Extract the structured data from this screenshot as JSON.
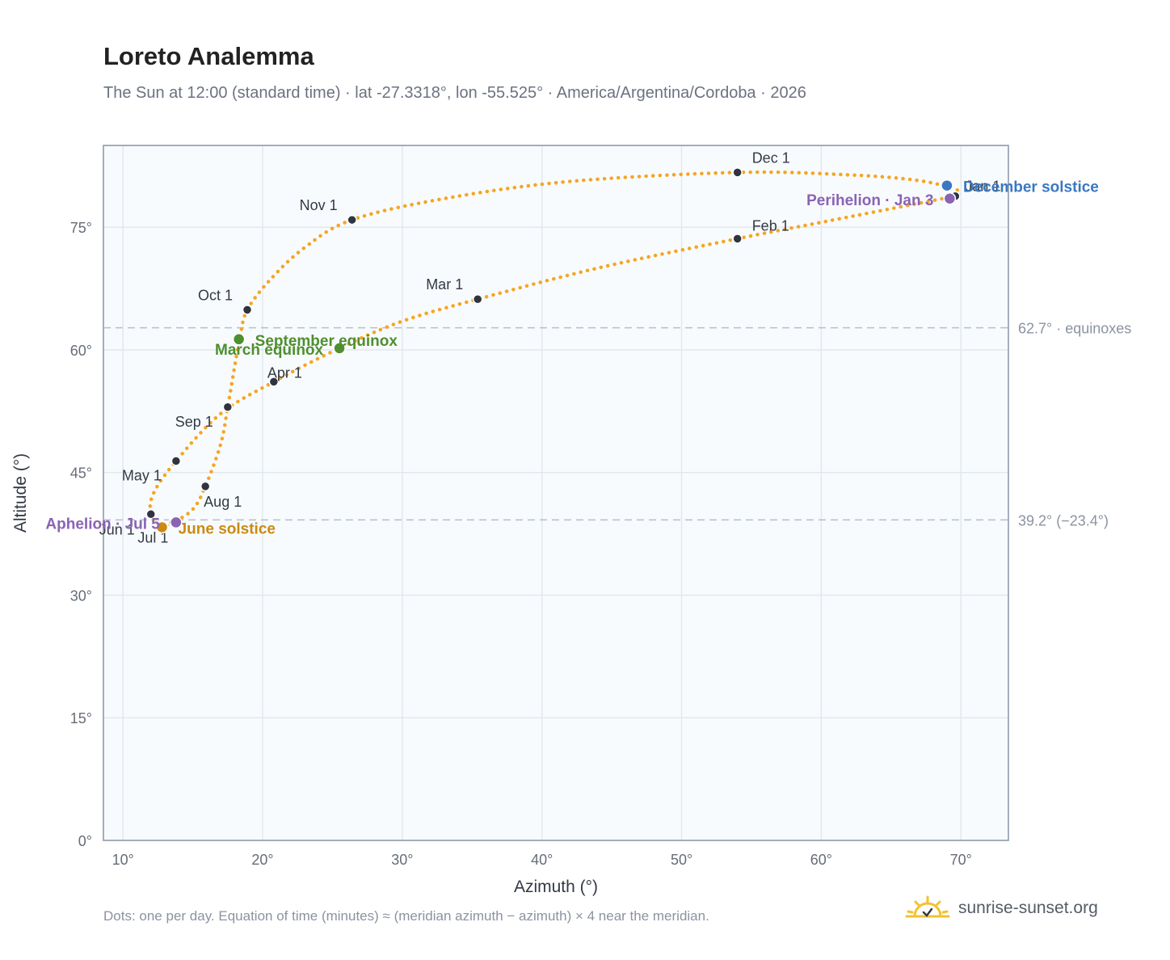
{
  "header": {
    "title": "Loreto Analemma",
    "subtitle": "The Sun at 12:00 (standard time) · lat -27.3318°, lon -55.525° · America/Argentina/Cordoba · 2026"
  },
  "footer": {
    "note": "Dots: one per day. Equation of time (minutes) ≈ (meridian azimuth − azimuth) × 4 near the meridian.",
    "brand": "sunrise-sunset.org",
    "brand_icon": "sun-logo-icon"
  },
  "colors": {
    "curve": "#f5a623",
    "month_marker": "#2f3440",
    "equinox": "#4e8f2f",
    "june_solstice": "#cc8a12",
    "december_solstice": "#3a78c2",
    "apsis": "#8a63b3",
    "plot_background": "#f8fbfe",
    "grid": "#e3e8ee"
  },
  "chart_data": {
    "type": "scatter",
    "xlabel": "Azimuth (°)",
    "ylabel": "Altitude (°)",
    "xlim": [
      8.6,
      73.4
    ],
    "ylim": [
      0,
      85
    ],
    "x_ticks": [
      10,
      20,
      30,
      40,
      50,
      60,
      70
    ],
    "x_tick_labels": [
      "10°",
      "20°",
      "30°",
      "40°",
      "50°",
      "60°",
      "70°"
    ],
    "y_ticks": [
      0,
      15,
      30,
      45,
      60,
      75
    ],
    "y_tick_labels": [
      "0°",
      "15°",
      "30°",
      "45°",
      "60°",
      "75°"
    ],
    "grid": true,
    "reference_lines": [
      {
        "y": 62.7,
        "label": "62.7° · equinoxes"
      },
      {
        "y": 39.2,
        "label": "39.2° (−23.4°)"
      }
    ],
    "month_markers": [
      {
        "label": "Jan 1",
        "x": 69.6,
        "y": 78.8
      },
      {
        "label": "Feb 1",
        "x": 54.0,
        "y": 73.6
      },
      {
        "label": "Mar 1",
        "x": 35.4,
        "y": 66.2
      },
      {
        "label": "Apr 1",
        "x": 20.8,
        "y": 56.1
      },
      {
        "label": "May 1",
        "x": 13.8,
        "y": 46.4
      },
      {
        "label": "Jun 1",
        "x": 12.0,
        "y": 39.9
      },
      {
        "label": "Jul 1",
        "x": 13.6,
        "y": 38.9
      },
      {
        "label": "Aug 1",
        "x": 15.9,
        "y": 43.3
      },
      {
        "label": "Sep 1",
        "x": 17.5,
        "y": 53.0
      },
      {
        "label": "Oct 1",
        "x": 18.9,
        "y": 64.9
      },
      {
        "label": "Nov 1",
        "x": 26.4,
        "y": 75.9
      },
      {
        "label": "Dec 1",
        "x": 54.0,
        "y": 81.7
      }
    ],
    "events": [
      {
        "label": "March equinox",
        "x": 25.5,
        "y": 60.2,
        "color_key": "equinox"
      },
      {
        "label": "September equinox",
        "x": 18.3,
        "y": 61.3,
        "color_key": "equinox"
      },
      {
        "label": "June solstice",
        "x": 12.8,
        "y": 38.3,
        "color_key": "june_solstice"
      },
      {
        "label": "December solstice",
        "x": 69.0,
        "y": 80.1,
        "color_key": "december_solstice"
      },
      {
        "label": "Aphelion · Jul 5",
        "x": 13.8,
        "y": 38.9,
        "color_key": "apsis"
      },
      {
        "label": "Perihelion · Jan 3",
        "x": 69.2,
        "y": 78.5,
        "color_key": "apsis"
      }
    ],
    "curve_path": [
      {
        "x": 69.6,
        "y": 78.8
      },
      {
        "x": 60.0,
        "y": 75.6
      },
      {
        "x": 54.0,
        "y": 73.6
      },
      {
        "x": 44.0,
        "y": 70.0
      },
      {
        "x": 35.4,
        "y": 66.2
      },
      {
        "x": 30.0,
        "y": 63.5
      },
      {
        "x": 25.5,
        "y": 60.2
      },
      {
        "x": 20.8,
        "y": 56.1
      },
      {
        "x": 17.0,
        "y": 52.2
      },
      {
        "x": 13.8,
        "y": 46.4
      },
      {
        "x": 12.2,
        "y": 42.5
      },
      {
        "x": 12.0,
        "y": 39.9
      },
      {
        "x": 12.8,
        "y": 38.3
      },
      {
        "x": 13.6,
        "y": 38.9
      },
      {
        "x": 15.0,
        "y": 40.5
      },
      {
        "x": 15.9,
        "y": 43.3
      },
      {
        "x": 17.0,
        "y": 48.5
      },
      {
        "x": 17.5,
        "y": 53.0
      },
      {
        "x": 18.0,
        "y": 58.0
      },
      {
        "x": 18.4,
        "y": 61.8
      },
      {
        "x": 18.9,
        "y": 64.9
      },
      {
        "x": 20.5,
        "y": 68.5
      },
      {
        "x": 23.0,
        "y": 72.5
      },
      {
        "x": 26.4,
        "y": 75.9
      },
      {
        "x": 33.0,
        "y": 78.5
      },
      {
        "x": 42.0,
        "y": 80.6
      },
      {
        "x": 54.0,
        "y": 81.7
      },
      {
        "x": 62.0,
        "y": 81.4
      },
      {
        "x": 67.0,
        "y": 80.7
      },
      {
        "x": 69.8,
        "y": 79.5
      },
      {
        "x": 69.6,
        "y": 78.8
      }
    ]
  }
}
